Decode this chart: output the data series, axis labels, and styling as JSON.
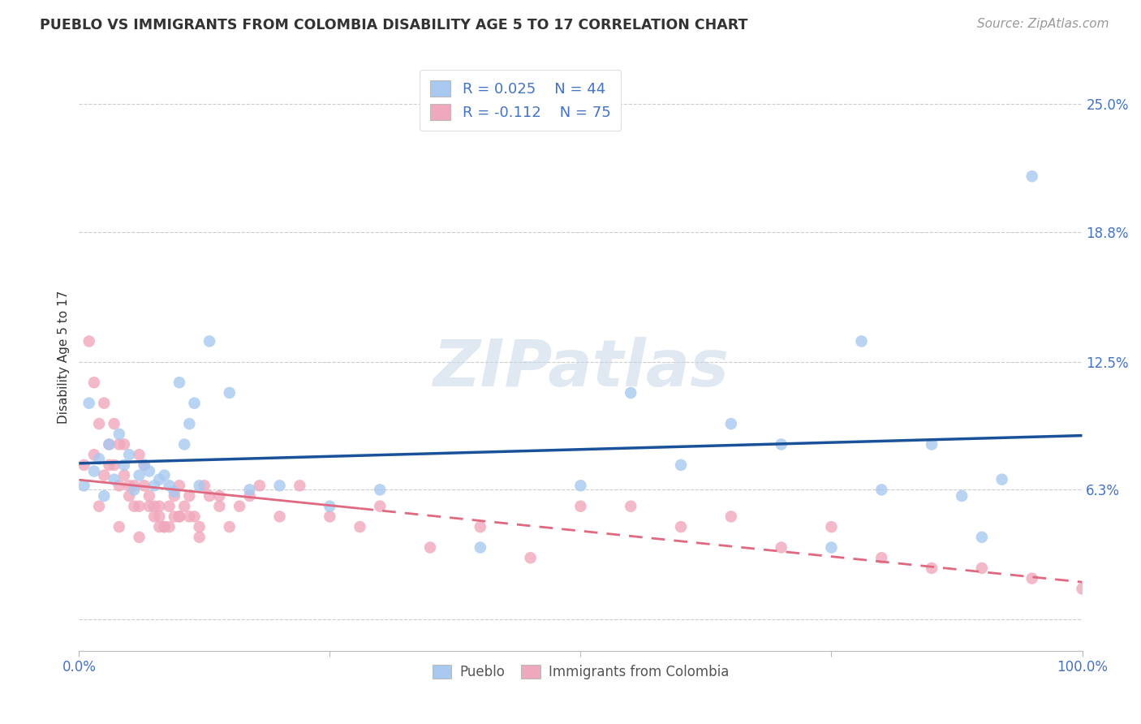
{
  "title": "PUEBLO VS IMMIGRANTS FROM COLOMBIA DISABILITY AGE 5 TO 17 CORRELATION CHART",
  "source": "Source: ZipAtlas.com",
  "ylabel": "Disability Age 5 to 17",
  "xlim": [
    0,
    100
  ],
  "ylim": [
    -1.5,
    27
  ],
  "yticks": [
    0,
    6.3,
    12.5,
    18.8,
    25.0
  ],
  "ytick_labels": [
    "",
    "6.3%",
    "12.5%",
    "18.8%",
    "25.0%"
  ],
  "xtick_labels": [
    "0.0%",
    "",
    "",
    "",
    "100.0%"
  ],
  "xticks": [
    0,
    25,
    50,
    75,
    100
  ],
  "legend_r1": "R = 0.025",
  "legend_n1": "N = 44",
  "legend_r2": "R = -0.112",
  "legend_n2": "N = 75",
  "watermark": "ZIPatlas",
  "blue_color": "#a8c8f0",
  "pink_color": "#f0a8bc",
  "line_blue_color": "#1a5299",
  "line_pink_color": "#e06880",
  "pueblo_x": [
    0.5,
    1.0,
    1.5,
    2.0,
    2.5,
    3.0,
    3.5,
    4.0,
    4.5,
    5.0,
    5.5,
    6.0,
    6.5,
    7.0,
    7.5,
    8.0,
    8.5,
    9.0,
    9.5,
    10.0,
    10.5,
    11.0,
    11.5,
    12.0,
    13.0,
    15.0,
    17.0,
    20.0,
    30.0,
    55.0,
    60.0,
    65.0,
    70.0,
    78.0,
    80.0,
    85.0,
    88.0,
    90.0,
    92.0,
    95.0,
    50.0,
    25.0,
    40.0,
    75.0
  ],
  "pueblo_y": [
    6.5,
    10.5,
    7.2,
    7.8,
    6.0,
    8.5,
    6.8,
    9.0,
    7.5,
    8.0,
    6.3,
    7.0,
    7.5,
    7.2,
    6.5,
    6.8,
    7.0,
    6.5,
    6.2,
    11.5,
    8.5,
    9.5,
    10.5,
    6.5,
    13.5,
    11.0,
    6.3,
    6.5,
    6.3,
    11.0,
    7.5,
    9.5,
    8.5,
    13.5,
    6.3,
    8.5,
    6.0,
    4.0,
    6.8,
    21.5,
    6.5,
    5.5,
    3.5,
    3.5
  ],
  "colombia_x": [
    0.5,
    1.0,
    1.5,
    2.0,
    2.5,
    3.0,
    3.5,
    4.0,
    4.5,
    5.0,
    5.5,
    6.0,
    6.5,
    7.0,
    7.5,
    8.0,
    8.5,
    9.0,
    9.5,
    10.0,
    10.5,
    11.0,
    11.5,
    12.0,
    12.5,
    13.0,
    14.0,
    15.0,
    16.0,
    17.0,
    18.0,
    20.0,
    22.0,
    25.0,
    28.0,
    30.0,
    35.0,
    40.0,
    45.0,
    50.0,
    55.0,
    60.0,
    65.0,
    70.0,
    75.0,
    80.0,
    85.0,
    90.0,
    95.0,
    100.0,
    1.5,
    2.5,
    3.5,
    4.5,
    5.5,
    6.5,
    7.5,
    8.5,
    9.5,
    3.0,
    5.0,
    7.0,
    9.0,
    11.0,
    4.0,
    6.0,
    8.0,
    10.0,
    12.0,
    14.0,
    2.0,
    4.0,
    6.0,
    8.0,
    10.0
  ],
  "colombia_y": [
    7.5,
    13.5,
    8.0,
    9.5,
    7.0,
    8.5,
    7.5,
    6.5,
    7.0,
    6.0,
    5.5,
    5.5,
    6.5,
    5.5,
    5.0,
    5.0,
    4.5,
    5.5,
    6.0,
    6.5,
    5.5,
    6.0,
    5.0,
    4.5,
    6.5,
    6.0,
    5.5,
    4.5,
    5.5,
    6.0,
    6.5,
    5.0,
    6.5,
    5.0,
    4.5,
    5.5,
    3.5,
    4.5,
    3.0,
    5.5,
    5.5,
    4.5,
    5.0,
    3.5,
    4.5,
    3.0,
    2.5,
    2.5,
    2.0,
    1.5,
    11.5,
    10.5,
    9.5,
    8.5,
    6.5,
    7.5,
    5.5,
    4.5,
    5.0,
    7.5,
    6.5,
    6.0,
    4.5,
    5.0,
    8.5,
    8.0,
    5.5,
    5.0,
    4.0,
    6.0,
    5.5,
    4.5,
    4.0,
    4.5,
    5.0
  ]
}
